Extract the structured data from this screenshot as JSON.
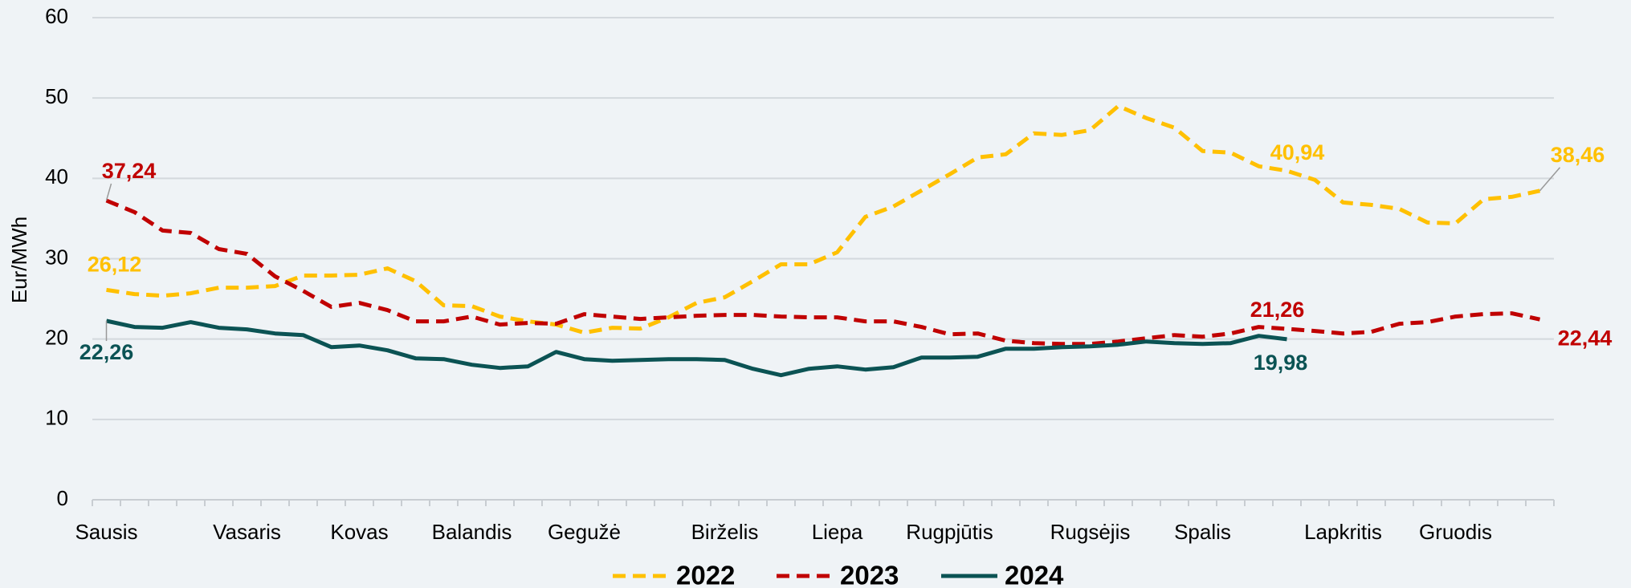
{
  "chart_data": {
    "type": "line",
    "y_label": "Eur/MWh",
    "categories": [
      "Sausis",
      null,
      null,
      null,
      null,
      "Vasaris",
      null,
      null,
      null,
      "Kovas",
      null,
      null,
      null,
      "Balandis",
      null,
      null,
      null,
      "Gegužė",
      null,
      null,
      null,
      null,
      "Birželis",
      null,
      null,
      null,
      "Liepa",
      null,
      null,
      null,
      "Rugpjūtis",
      null,
      null,
      null,
      null,
      "Rugsėjis",
      null,
      null,
      null,
      "Spalis",
      null,
      null,
      null,
      null,
      "Lapkritis",
      null,
      null,
      null,
      "Gruodis",
      null,
      null,
      null
    ],
    "ylim": [
      0,
      60
    ],
    "yticks": [
      0,
      10,
      20,
      30,
      40,
      50,
      60
    ],
    "grid": true,
    "legend": "bottom",
    "series": [
      {
        "name": "2022",
        "color": "#FFC000",
        "dashed": true,
        "values": [
          26.12,
          25.6,
          25.4,
          25.7,
          26.4,
          26.4,
          26.6,
          27.9,
          27.9,
          28.0,
          28.8,
          27.2,
          24.2,
          24.1,
          22.8,
          22.2,
          21.8,
          20.8,
          21.4,
          21.3,
          22.7,
          24.5,
          25.2,
          27.2,
          29.3,
          29.3,
          30.8,
          35.2,
          36.5,
          38.5,
          40.5,
          42.6,
          43.0,
          45.6,
          45.4,
          46.0,
          49.0,
          47.5,
          46.3,
          43.4,
          43.2,
          41.5,
          40.94,
          39.8,
          37.0,
          36.7,
          36.2,
          34.5,
          34.4,
          37.4,
          37.7,
          38.46
        ],
        "value_labels": [
          "26,12",
          null,
          null,
          null,
          null,
          null,
          null,
          null,
          null,
          null,
          null,
          null,
          null,
          null,
          null,
          null,
          null,
          null,
          null,
          null,
          null,
          null,
          null,
          null,
          null,
          null,
          null,
          null,
          null,
          null,
          null,
          null,
          null,
          null,
          null,
          null,
          null,
          null,
          null,
          null,
          null,
          null,
          "40,94",
          null,
          null,
          null,
          null,
          null,
          null,
          null,
          null,
          "38,46"
        ]
      },
      {
        "name": "2023",
        "color": "#C00000",
        "dashed": true,
        "values": [
          37.24,
          35.8,
          33.5,
          33.2,
          31.2,
          30.6,
          27.8,
          26.0,
          24.0,
          24.5,
          23.6,
          22.2,
          22.2,
          22.8,
          21.8,
          22.0,
          21.9,
          23.1,
          22.8,
          22.5,
          22.7,
          22.9,
          23.0,
          23.0,
          22.8,
          22.7,
          22.7,
          22.2,
          22.2,
          21.5,
          20.6,
          20.7,
          19.8,
          19.5,
          19.4,
          19.4,
          19.7,
          20.1,
          20.5,
          20.3,
          20.7,
          21.5,
          21.26,
          21.0,
          20.7,
          20.9,
          21.9,
          22.1,
          22.8,
          23.1,
          23.2,
          22.44
        ],
        "value_labels": [
          "37,24",
          null,
          null,
          null,
          null,
          null,
          null,
          null,
          null,
          null,
          null,
          null,
          null,
          null,
          null,
          null,
          null,
          null,
          null,
          null,
          null,
          null,
          null,
          null,
          null,
          null,
          null,
          null,
          null,
          null,
          null,
          null,
          null,
          null,
          null,
          null,
          null,
          null,
          null,
          null,
          null,
          null,
          "21,26",
          null,
          null,
          null,
          null,
          null,
          null,
          null,
          null,
          "22,44"
        ]
      },
      {
        "name": "2024",
        "color": "#0B5354",
        "dashed": false,
        "values": [
          22.26,
          21.5,
          21.4,
          22.1,
          21.4,
          21.2,
          20.7,
          20.5,
          19.0,
          19.2,
          18.6,
          17.6,
          17.5,
          16.8,
          16.4,
          16.6,
          18.4,
          17.5,
          17.3,
          17.4,
          17.5,
          17.5,
          17.4,
          16.3,
          15.5,
          16.3,
          16.6,
          16.2,
          16.5,
          17.7,
          17.7,
          17.8,
          18.8,
          18.8,
          19.0,
          19.1,
          19.3,
          19.7,
          19.5,
          19.4,
          19.5,
          20.4,
          19.98,
          null,
          null,
          null,
          null,
          null,
          null,
          null,
          null,
          null
        ],
        "value_labels": [
          "22,26",
          null,
          null,
          null,
          null,
          null,
          null,
          null,
          null,
          null,
          null,
          null,
          null,
          null,
          null,
          null,
          null,
          null,
          null,
          null,
          null,
          null,
          null,
          null,
          null,
          null,
          null,
          null,
          null,
          null,
          null,
          null,
          null,
          null,
          null,
          null,
          null,
          null,
          null,
          null,
          null,
          null,
          "19,98",
          null,
          null,
          null,
          null,
          null,
          null,
          null,
          null,
          null
        ]
      }
    ]
  }
}
